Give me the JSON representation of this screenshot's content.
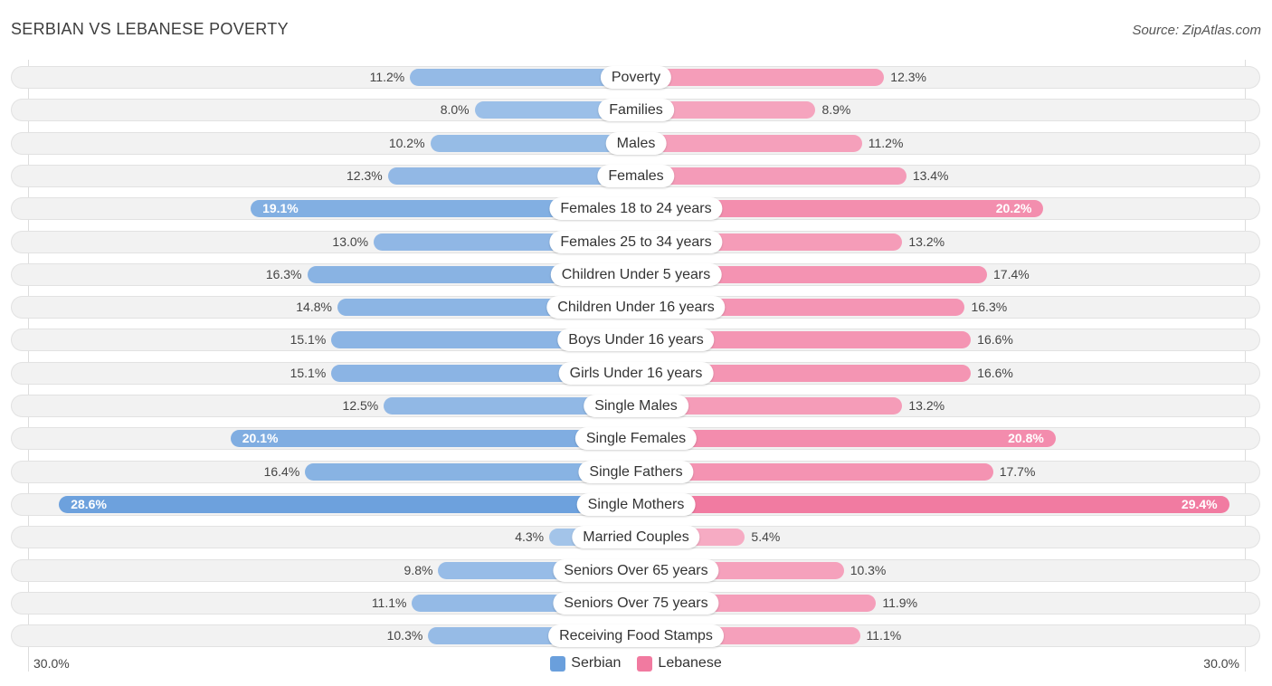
{
  "header": {
    "title": "SERBIAN VS LEBANESE POVERTY",
    "source": "Source: ZipAtlas.com"
  },
  "chart_data": {
    "type": "bar",
    "orientation": "horizontal-diverging",
    "title": "SERBIAN VS LEBANESE POVERTY",
    "categories": [
      "Poverty",
      "Families",
      "Males",
      "Females",
      "Females 18 to 24 years",
      "Females 25 to 34 years",
      "Children Under 5 years",
      "Children Under 16 years",
      "Boys Under 16 years",
      "Girls Under 16 years",
      "Single Males",
      "Single Females",
      "Single Fathers",
      "Single Mothers",
      "Married Couples",
      "Seniors Over 65 years",
      "Seniors Over 75 years",
      "Receiving Food Stamps"
    ],
    "series": [
      {
        "name": "Serbian",
        "color": "#6a9fdc",
        "values": [
          11.2,
          8.0,
          10.2,
          12.3,
          19.1,
          13.0,
          16.3,
          14.8,
          15.1,
          15.1,
          12.5,
          20.1,
          16.4,
          28.6,
          4.3,
          9.8,
          11.1,
          10.3
        ],
        "labels": [
          "11.2%",
          "8.0%",
          "10.2%",
          "12.3%",
          "19.1%",
          "13.0%",
          "16.3%",
          "14.8%",
          "15.1%",
          "15.1%",
          "12.5%",
          "20.1%",
          "16.4%",
          "28.6%",
          "4.3%",
          "9.8%",
          "11.1%",
          "10.3%"
        ]
      },
      {
        "name": "Lebanese",
        "color": "#f17aa0",
        "values": [
          12.3,
          8.9,
          11.2,
          13.4,
          20.2,
          13.2,
          17.4,
          16.3,
          16.6,
          16.6,
          13.2,
          20.8,
          17.7,
          29.4,
          5.4,
          10.3,
          11.9,
          11.1
        ],
        "labels": [
          "12.3%",
          "8.9%",
          "11.2%",
          "13.4%",
          "20.2%",
          "13.2%",
          "17.4%",
          "16.3%",
          "16.6%",
          "16.6%",
          "13.2%",
          "20.8%",
          "17.7%",
          "29.4%",
          "5.4%",
          "10.3%",
          "11.9%",
          "11.1%"
        ]
      }
    ],
    "xlim": [
      0,
      30
    ],
    "axis_labels": {
      "left": "30.0%",
      "right": "30.0%"
    },
    "legend": {
      "position": "bottom-center",
      "entries": [
        "Serbian",
        "Lebanese"
      ]
    }
  }
}
